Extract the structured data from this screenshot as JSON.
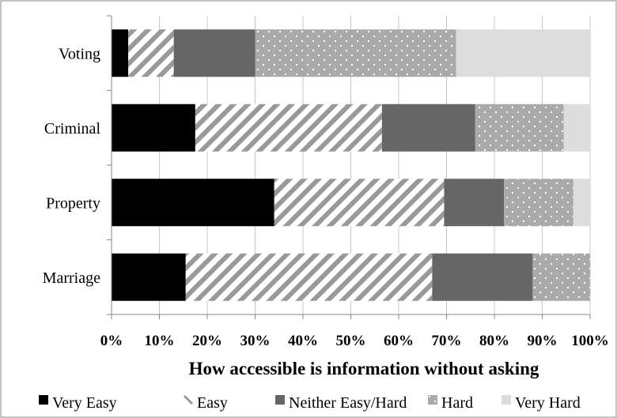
{
  "chart_data": {
    "type": "bar",
    "orientation": "horizontal",
    "stacked": "percent",
    "categories": [
      "Voting",
      "Criminal",
      "Property",
      "Marriage"
    ],
    "series": [
      {
        "name": "Very Easy",
        "color": "#000000",
        "pattern": "solid",
        "values": [
          3.5,
          17.5,
          34,
          15.5
        ]
      },
      {
        "name": "Easy",
        "color": "#999999",
        "pattern": "diagonal-stripes",
        "values": [
          9.5,
          39,
          35.5,
          51.5
        ]
      },
      {
        "name": "Neither Easy/Hard",
        "color": "#666666",
        "pattern": "solid",
        "values": [
          17,
          19.5,
          12.5,
          21
        ]
      },
      {
        "name": "Hard",
        "color": "#aaaaaa",
        "pattern": "dotted",
        "values": [
          42,
          18.5,
          14.5,
          12
        ]
      },
      {
        "name": "Very Hard",
        "color": "#dddddd",
        "pattern": "solid",
        "values": [
          28,
          5.5,
          3.5,
          0
        ]
      }
    ],
    "xlabel": "How accessible is information without asking",
    "xlim": [
      0,
      100
    ],
    "x_ticks": [
      "0%",
      "10%",
      "20%",
      "30%",
      "40%",
      "50%",
      "60%",
      "70%",
      "80%",
      "90%",
      "100%"
    ],
    "grid": true,
    "legend_position": "bottom"
  }
}
